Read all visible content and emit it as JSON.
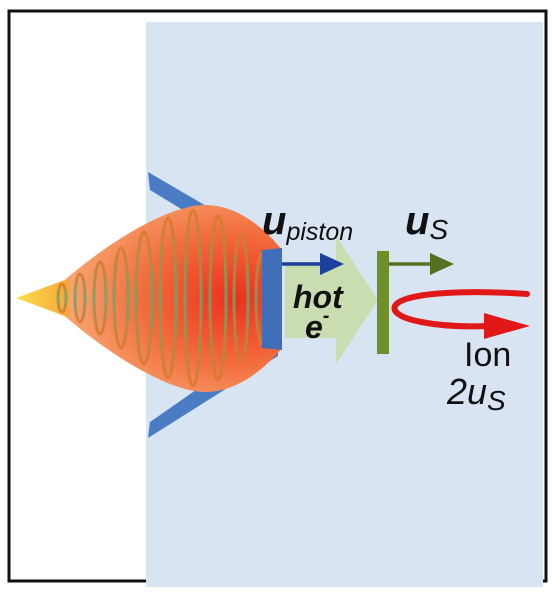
{
  "labels": {
    "u_piston_main": "u",
    "u_piston_sub": "piston",
    "hot": "hot",
    "electron": "e",
    "electron_charge": "-",
    "u_s_main": "u",
    "u_s_sub": "S",
    "ion": "Ion",
    "ion_velocity_main": "2u",
    "ion_velocity_sub": "S"
  },
  "colors": {
    "frame": "#111111",
    "background_panel": "#d8e4f1",
    "target_wedge": "#4a7cc4",
    "laser_outer": "#f7a36a",
    "laser_core": "#ee3b22",
    "laser_tip": "#f6d21b",
    "hot_electron_arrow": "#c9ddb0",
    "piston_arrow": "#1d3f9e",
    "shock_front": "#6f8f2a",
    "ion_arrow": "#e01818",
    "text": "#111111"
  },
  "icons": {
    "laser_pulse": "laser-pulse-icon",
    "target": "target-wedge-icon",
    "shock_front": "shock-front-icon"
  }
}
